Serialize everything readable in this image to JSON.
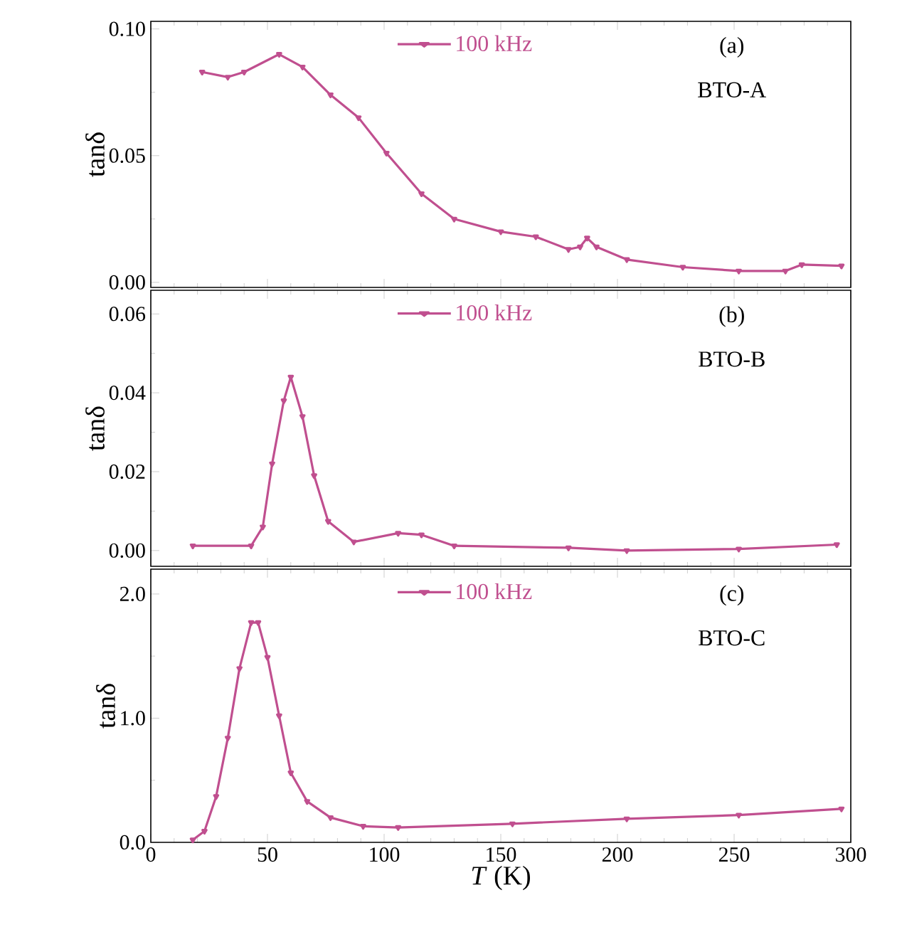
{
  "chart_data": [
    {
      "type": "line",
      "ylabel": "tanδ",
      "annotations": [
        "(a)",
        "BTO-A"
      ],
      "legend": "top",
      "marker": "triangle",
      "tick_labels": "y",
      "xlim": [
        0,
        300
      ],
      "xticks": [
        0,
        50,
        100,
        150,
        200,
        250,
        300
      ],
      "ylim": [
        -0.002,
        0.103
      ],
      "yticks": [
        {
          "value": 0,
          "label": "0.00"
        },
        0.05,
        {
          "value": 0.1,
          "label": "0.10"
        }
      ],
      "series": [
        {
          "name": "100 kHz",
          "color": "#c04f8f",
          "x": [
            22,
            33,
            40,
            55,
            65,
            77,
            89,
            101,
            116,
            130,
            150,
            165,
            179,
            184,
            187,
            191,
            204,
            228,
            252,
            272,
            279,
            296
          ],
          "values": [
            0.083,
            0.081,
            0.083,
            0.09,
            0.085,
            0.074,
            0.065,
            0.051,
            0.035,
            0.025,
            0.02,
            0.018,
            0.013,
            0.014,
            0.0175,
            0.014,
            0.009,
            0.006,
            0.0045,
            0.0045,
            0.007,
            0.0065
          ]
        }
      ]
    },
    {
      "type": "line",
      "ylabel": "tanδ",
      "annotations": [
        "(b)",
        "BTO-B"
      ],
      "legend": "top",
      "marker": "triangle",
      "tick_labels": "y",
      "xlim": [
        0,
        300
      ],
      "xticks": [
        0,
        50,
        100,
        150,
        200,
        250,
        300
      ],
      "ylim": [
        -0.004,
        0.066
      ],
      "yticks": [
        {
          "value": 0,
          "label": "0.00"
        },
        0.02,
        0.04,
        0.06
      ],
      "series": [
        {
          "name": "100 kHz",
          "color": "#c04f8f",
          "x": [
            18,
            43,
            48,
            52,
            57,
            60,
            65,
            70,
            76,
            87,
            106,
            116,
            130,
            179,
            204,
            252,
            294
          ],
          "values": [
            0.0012,
            0.0012,
            0.006,
            0.022,
            0.038,
            0.044,
            0.034,
            0.019,
            0.0074,
            0.0022,
            0.0044,
            0.004,
            0.0012,
            0.0007,
            0.0,
            0.0004,
            0.0015
          ]
        }
      ]
    },
    {
      "type": "line",
      "xlabel": "*T* (K)",
      "ylabel": "tanδ",
      "annotations": [
        "(c)",
        "BTO-C"
      ],
      "legend": "top",
      "marker": "triangle",
      "xlim": [
        0,
        300
      ],
      "xticks": [
        0,
        50,
        100,
        150,
        200,
        250,
        300
      ],
      "ylim": [
        0,
        2.2
      ],
      "yticks": [
        {
          "value": 0,
          "label": "0.0"
        },
        {
          "value": 1,
          "label": "1.0"
        },
        {
          "value": 2,
          "label": "2.0"
        }
      ],
      "series": [
        {
          "name": "100 kHz",
          "color": "#c04f8f",
          "x": [
            18,
            23,
            28,
            33,
            38,
            43,
            46,
            50,
            55,
            60,
            67,
            77,
            91,
            106,
            155,
            204,
            252,
            296
          ],
          "values": [
            0.02,
            0.09,
            0.37,
            0.84,
            1.4,
            1.77,
            1.77,
            1.49,
            1.02,
            0.56,
            0.33,
            0.2,
            0.13,
            0.12,
            0.15,
            0.19,
            0.22,
            0.27
          ]
        }
      ]
    }
  ]
}
